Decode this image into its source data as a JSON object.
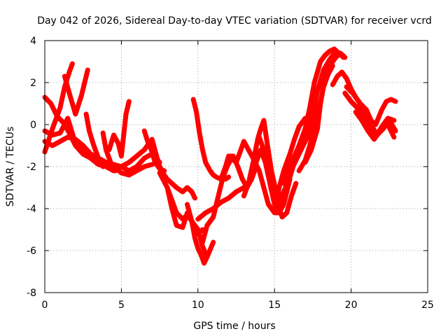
{
  "chart_data": {
    "type": "scatter",
    "title": "Day 042 of 2026, Sidereal Day-to-day VTEC variation (SDTVAR) for receiver vcrd",
    "xlabel": "GPS time / hours",
    "ylabel": "SDTVAR / TECUs",
    "xlim": [
      0,
      25
    ],
    "ylim": [
      -8,
      4
    ],
    "xticks": [
      0,
      5,
      10,
      15,
      20,
      25
    ],
    "yticks": [
      -8,
      -6,
      -4,
      -2,
      0,
      2,
      4
    ],
    "grid": true,
    "marker": "plus",
    "color": "#ff0000",
    "series": [
      {
        "x": [
          0,
          0.5,
          1.0,
          1.5,
          2.0,
          2.5,
          3.0,
          3.5,
          4.0,
          4.5,
          5.0,
          5.5,
          6.0,
          6.5,
          7.0,
          7.5
        ],
        "y": [
          -0.3,
          -0.5,
          -0.4,
          0.3,
          -0.9,
          -1.3,
          -1.5,
          -1.6,
          -1.8,
          -1.9,
          -2.0,
          -2.2,
          -2.0,
          -1.6,
          -1.4,
          -1.8
        ]
      },
      {
        "x": [
          0,
          0.5,
          1.0,
          1.3,
          1.6,
          1.8
        ],
        "y": [
          -1.3,
          -0.2,
          0.8,
          1.8,
          2.5,
          2.9
        ]
      },
      {
        "x": [
          0,
          0.4,
          0.8,
          1.2,
          1.6,
          2.0,
          2.5,
          3.0,
          3.5,
          4.0,
          4.5
        ],
        "y": [
          1.3,
          1.0,
          0.4,
          0.1,
          -0.4,
          -1.0,
          -1.4,
          -1.6,
          -1.9,
          -2.0,
          -2.2
        ]
      },
      {
        "x": [
          1.3,
          1.6,
          2.0,
          2.4,
          2.8
        ],
        "y": [
          2.3,
          1.5,
          0.5,
          1.4,
          2.6
        ]
      },
      {
        "x": [
          0,
          0.5,
          1.0,
          1.5,
          2.0,
          2.5,
          3.0,
          3.5,
          4.0,
          4.5,
          5.0,
          5.5,
          6.0,
          6.5,
          7.0
        ],
        "y": [
          -0.8,
          -1.0,
          -0.8,
          -0.6,
          -0.7,
          -1.0,
          -1.4,
          -1.6,
          -1.8,
          -2.0,
          -2.3,
          -2.4,
          -2.2,
          -2.0,
          -1.9
        ]
      },
      {
        "x": [
          2.7,
          2.9,
          3.2,
          3.5,
          3.8
        ],
        "y": [
          0.5,
          -0.3,
          -1.0,
          -1.6,
          -2.0
        ]
      },
      {
        "x": [
          3.8,
          4.0,
          4.3,
          4.6
        ],
        "y": [
          -0.4,
          -1.2,
          -1.8,
          -2.2
        ]
      },
      {
        "x": [
          4.2,
          4.5,
          4.8,
          5.0,
          5.3,
          5.5
        ],
        "y": [
          -1.2,
          -0.5,
          -0.9,
          -1.5,
          0.5,
          1.1
        ]
      },
      {
        "x": [
          5.0,
          5.5,
          6.0,
          6.5,
          6.8,
          7.0,
          7.2,
          7.5,
          7.8
        ],
        "y": [
          -2.0,
          -1.8,
          -1.5,
          -1.2,
          -0.9,
          -1.3,
          -1.8,
          -2.1,
          -2.2
        ]
      },
      {
        "x": [
          6.5,
          6.8,
          7.0,
          7.3,
          7.5,
          7.8,
          8.0,
          8.3,
          8.6,
          9.0,
          9.3,
          9.6,
          9.8
        ],
        "y": [
          -0.3,
          -1.0,
          -0.7,
          -1.5,
          -2.0,
          -2.4,
          -2.6,
          -2.8,
          -3.0,
          -3.2,
          -3.0,
          -3.2,
          -3.5
        ]
      },
      {
        "x": [
          7.5,
          8.0,
          8.3,
          8.6,
          9.0,
          9.3,
          9.6,
          10.0,
          10.3
        ],
        "y": [
          -2.3,
          -3.0,
          -4.0,
          -4.8,
          -4.9,
          -4.2,
          -4.6,
          -5.2,
          -5.0
        ]
      },
      {
        "x": [
          8.0,
          8.3,
          8.6,
          9.0,
          9.3,
          9.6,
          10.0,
          10.3,
          10.6,
          11.0
        ],
        "y": [
          -3.0,
          -3.6,
          -4.2,
          -4.5,
          -4.3,
          -4.6,
          -5.0,
          -5.8,
          -6.3,
          -5.6
        ]
      },
      {
        "x": [
          9.3,
          9.6,
          9.8,
          10.0,
          10.2,
          10.4,
          10.6
        ],
        "y": [
          -3.8,
          -4.6,
          -5.4,
          -5.9,
          -6.2,
          -6.6,
          -6.3
        ]
      },
      {
        "x": [
          9.7,
          9.9,
          10.1,
          10.3,
          10.5,
          10.8,
          11.0,
          11.2,
          11.5,
          11.8,
          12.0
        ],
        "y": [
          1.2,
          0.6,
          -0.4,
          -1.2,
          -1.8,
          -2.2,
          -2.4,
          -2.5,
          -2.6,
          -2.6,
          -2.5
        ]
      },
      {
        "x": [
          10.0,
          10.5,
          11.0,
          11.5,
          12.0,
          12.5,
          13.0
        ],
        "y": [
          -4.5,
          -4.2,
          -4.0,
          -3.7,
          -3.5,
          -3.2,
          -3.0
        ]
      },
      {
        "x": [
          10.3,
          10.6,
          11.0,
          11.3,
          11.6,
          11.9,
          12.2,
          12.5
        ],
        "y": [
          -5.6,
          -4.8,
          -4.4,
          -3.5,
          -2.6,
          -2.0,
          -1.6,
          -1.8
        ]
      },
      {
        "x": [
          11.5,
          11.8,
          12.0,
          12.3,
          12.6,
          12.9,
          13.2,
          13.5,
          13.8
        ],
        "y": [
          -2.6,
          -2.0,
          -1.5,
          -1.5,
          -2.0,
          -2.6,
          -3.0,
          -2.6,
          -2.0
        ]
      },
      {
        "x": [
          12.5,
          12.8,
          13.0,
          13.3,
          13.6,
          14.0,
          14.3,
          14.6,
          15.0,
          15.3,
          15.6,
          16.0
        ],
        "y": [
          -1.8,
          -1.2,
          -0.8,
          -1.2,
          -1.6,
          -2.2,
          -3.0,
          -3.8,
          -4.2,
          -4.2,
          -3.8,
          -2.6
        ]
      },
      {
        "x": [
          13.0,
          13.3,
          13.6,
          13.9,
          14.1,
          14.3,
          14.5,
          14.8,
          15.1
        ],
        "y": [
          -3.4,
          -2.8,
          -1.8,
          -0.7,
          -0.2,
          0.2,
          -0.8,
          -2.2,
          -3.2
        ]
      },
      {
        "x": [
          13.5,
          13.8,
          14.1,
          14.4,
          14.7,
          15.0,
          15.3,
          15.6
        ],
        "y": [
          -2.6,
          -1.8,
          -1.2,
          -1.8,
          -2.8,
          -3.8,
          -4.0,
          -3.5
        ]
      },
      {
        "x": [
          14.0,
          14.3,
          14.6,
          14.9,
          15.2,
          15.5,
          15.8,
          16.1,
          16.4
        ],
        "y": [
          -0.6,
          -1.2,
          -2.2,
          -3.2,
          -3.8,
          -4.4,
          -4.2,
          -3.4,
          -2.8
        ]
      },
      {
        "x": [
          15.0,
          15.3,
          15.6,
          16.0,
          16.3,
          16.6,
          17.0,
          17.3
        ],
        "y": [
          -4.1,
          -3.0,
          -2.2,
          -1.4,
          -0.7,
          -0.1,
          0.3,
          -0.5
        ]
      },
      {
        "x": [
          15.3,
          15.6,
          16.0,
          16.3,
          16.6,
          17.0,
          17.3,
          17.6,
          17.9
        ],
        "y": [
          -3.6,
          -3.2,
          -2.5,
          -1.8,
          -1.2,
          -0.8,
          -0.4,
          0.2,
          1.0
        ]
      },
      {
        "x": [
          15.6,
          16.0,
          16.3,
          16.6,
          17.0,
          17.3,
          17.6,
          18.0,
          18.3,
          18.6,
          18.9,
          19.2,
          19.5
        ],
        "y": [
          -2.8,
          -2.0,
          -1.5,
          -1.0,
          -0.2,
          0.8,
          2.0,
          3.0,
          3.3,
          3.5,
          3.6,
          3.4,
          3.2
        ]
      },
      {
        "x": [
          15.8,
          16.2,
          16.6,
          17.0,
          17.4,
          17.8,
          18.2,
          18.6,
          19.0,
          19.4
        ],
        "y": [
          -2.4,
          -2.0,
          -1.4,
          -0.8,
          0.2,
          1.6,
          2.6,
          3.1,
          3.5,
          3.3
        ]
      },
      {
        "x": [
          16.6,
          17.0,
          17.3,
          17.6,
          17.9,
          18.2,
          18.5,
          18.8
        ],
        "y": [
          -2.2,
          -1.7,
          -1.0,
          -0.2,
          0.8,
          1.8,
          2.4,
          2.8
        ]
      },
      {
        "x": [
          17.0,
          17.4,
          17.8,
          18.0,
          18.3,
          18.6,
          19.0,
          19.3,
          19.6
        ],
        "y": [
          -1.8,
          -1.2,
          -0.2,
          1.0,
          2.2,
          2.8,
          3.2,
          3.4,
          3.2
        ]
      },
      {
        "x": [
          18.8,
          19.1,
          19.4,
          19.7,
          20.0,
          20.3,
          20.6,
          21.0,
          21.3,
          21.6,
          22.0,
          22.3,
          22.6,
          22.9
        ],
        "y": [
          1.9,
          2.3,
          2.5,
          2.2,
          1.7,
          1.3,
          1.0,
          0.7,
          0.2,
          0.0,
          0.7,
          1.1,
          1.2,
          1.1
        ]
      },
      {
        "x": [
          19.6,
          20.0,
          20.4,
          20.8,
          21.2,
          21.6,
          22.0,
          22.4,
          22.8
        ],
        "y": [
          1.5,
          1.1,
          0.8,
          0.4,
          -0.2,
          -0.6,
          -0.1,
          0.3,
          0.2
        ]
      },
      {
        "x": [
          20.3,
          20.7,
          21.1,
          21.5,
          21.8,
          22.1,
          22.4,
          22.8
        ],
        "y": [
          0.6,
          0.2,
          -0.3,
          -0.7,
          -0.4,
          -0.1,
          0.0,
          -0.6
        ]
      },
      {
        "x": [
          19.7,
          20.1,
          20.5,
          20.9,
          21.3,
          21.7,
          22.1,
          22.5,
          22.9
        ],
        "y": [
          1.8,
          1.5,
          1.1,
          0.5,
          0.0,
          -0.5,
          -0.2,
          0.2,
          -0.3
        ]
      }
    ]
  }
}
